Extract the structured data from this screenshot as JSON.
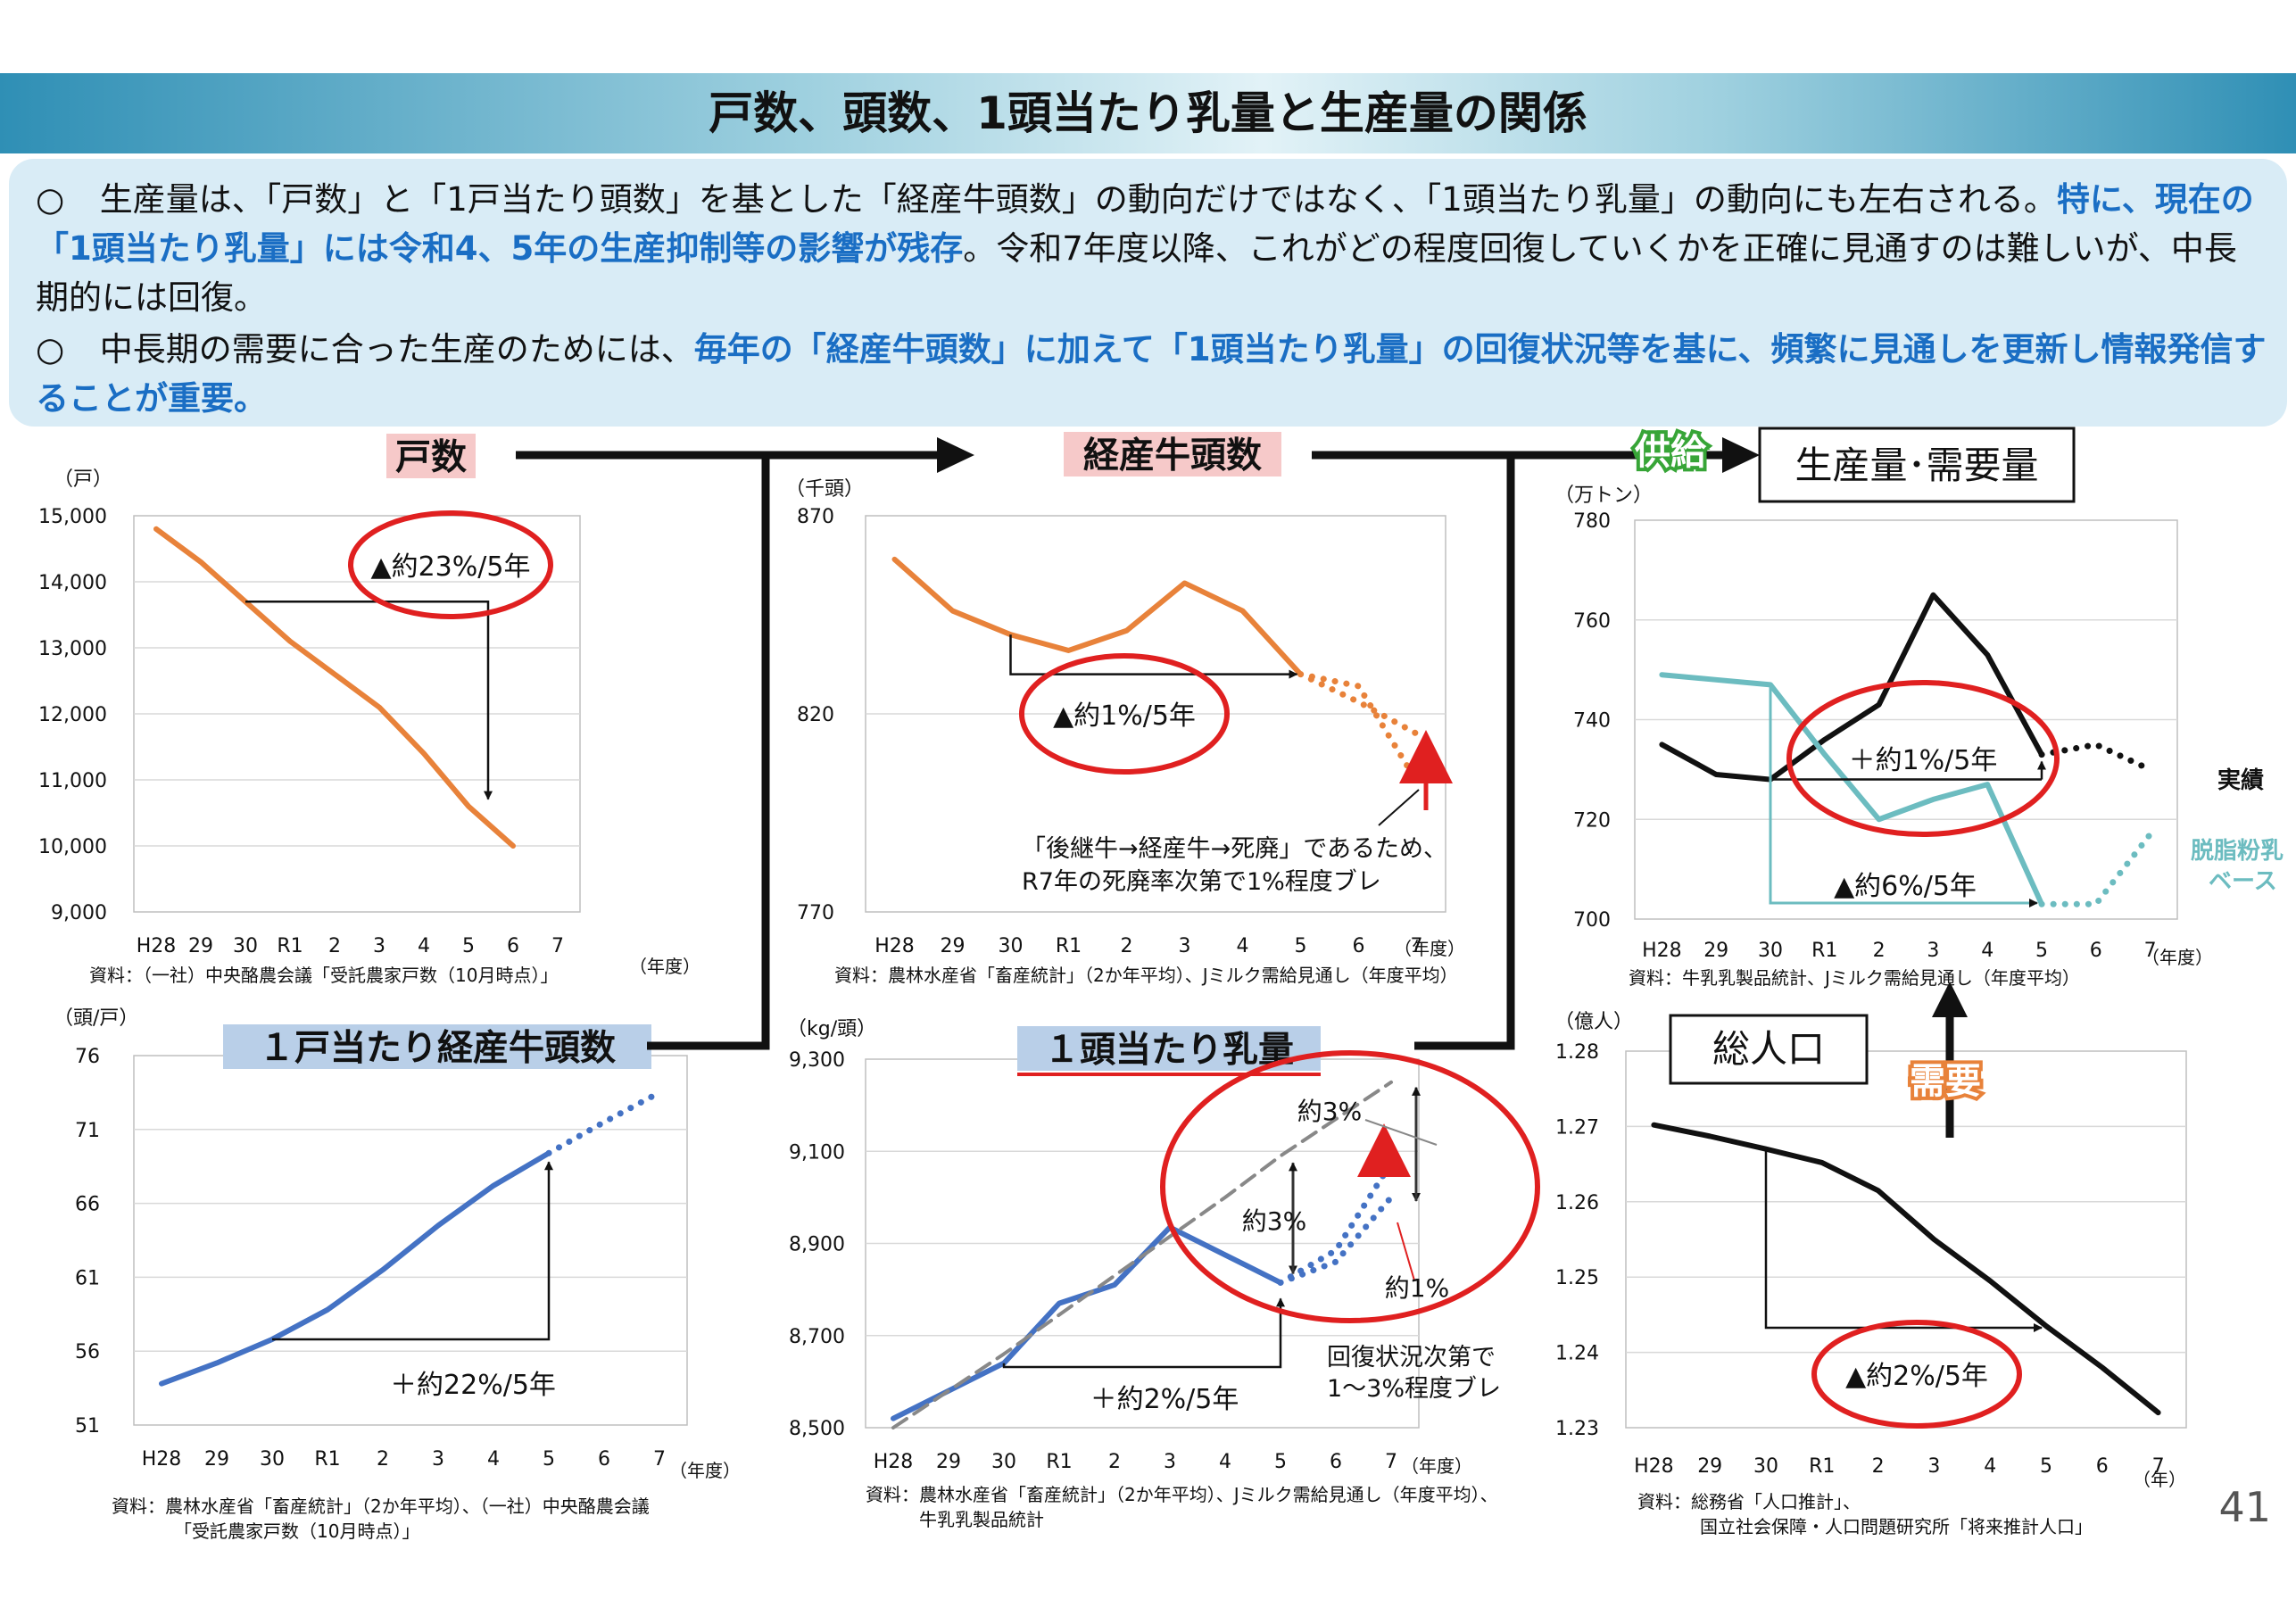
{
  "title": "戸数、頭数、1頭当たり乳量と生産量の関係",
  "summary": {
    "b1": {
      "mark": "○",
      "pre": " 生産量は、「戸数」と「1戸当たり頭数」を基とした「経産牛頭数」の動向だけではなく、「1頭当たり乳量」の動向にも左右される。",
      "hl": "特に、現在の「1頭当たり乳量」には令和4、5年の生産抑制等の影響が残存",
      "post": "。令和7年度以降、これがどの程度回復していくかを正確に見通すのは難しいが、中長期的には回復。"
    },
    "b2": {
      "mark": "○",
      "pre": " 中長期の需要に合った生産のためには、",
      "hl": "毎年の「経産牛頭数」に加えて「1頭当たり乳量」の回復状況等を基に、頻繁に見通しを更新し情報発信することが重要。"
    }
  },
  "flow": {
    "supply": "供給",
    "demand": "需要",
    "output_box": "生産量･需要量",
    "population_box": "総人口"
  },
  "page_number": "41",
  "colors": {
    "orange": "#e8823a",
    "blue": "#4472c4",
    "teal": "#6cbcc0",
    "black": "#111111",
    "red": "#e02020",
    "pink": "#f6c9c9",
    "lightblue": "#b9cfe8"
  },
  "chart_data": [
    {
      "id": "households",
      "type": "line",
      "title": "戸数",
      "unit": "（戸）",
      "categories": [
        "H28",
        "29",
        "30",
        "R1",
        "2",
        "3",
        "4",
        "5",
        "6",
        "7"
      ],
      "xaxis_suffix": "（年度）",
      "ylim": [
        9000,
        15000
      ],
      "yticks": [
        "9,000",
        "10,000",
        "11,000",
        "12,000",
        "13,000",
        "14,000",
        "15,000"
      ],
      "series": [
        {
          "values": [
            14800,
            14300,
            13700,
            13100,
            12600,
            12100,
            11400,
            10600,
            10000,
            null
          ],
          "color": "#e8823a"
        }
      ],
      "annotation": "▲約23%/5年",
      "source": "資料：（一社）中央酪農会議「受託農家戸数（10月時点）」"
    },
    {
      "id": "cows",
      "type": "line",
      "title": "経産牛頭数",
      "unit": "（千頭）",
      "categories": [
        "H28",
        "29",
        "30",
        "R1",
        "2",
        "3",
        "4",
        "5",
        "6",
        "7"
      ],
      "xaxis_suffix": "（年度）",
      "ylim": [
        770,
        870
      ],
      "yticks": [
        "770",
        "820",
        "870"
      ],
      "series": [
        {
          "values": [
            859,
            846,
            840,
            836,
            841,
            853,
            846,
            830,
            null,
            null
          ],
          "color": "#e8823a"
        },
        {
          "values": [
            null,
            null,
            null,
            null,
            null,
            null,
            null,
            830,
            827,
            803
          ],
          "color": "#e8823a",
          "dotted": true
        },
        {
          "values": [
            null,
            null,
            null,
            null,
            null,
            null,
            null,
            830,
            823,
            815
          ],
          "color": "#e8823a",
          "dotted": true
        }
      ],
      "annotation": "▲約1%/5年",
      "note1": "「後継牛→経産牛→死廃」であるため、",
      "note2": "R7年の死廃率次第で1%程度ブレ",
      "source": "資料：農林水産省「畜産統計」（2か年平均）、Jミルク需給見通し（年度平均）"
    },
    {
      "id": "production",
      "type": "line",
      "unit": "（万トン）",
      "categories": [
        "H28",
        "29",
        "30",
        "R1",
        "2",
        "3",
        "4",
        "5",
        "6",
        "7"
      ],
      "xaxis_suffix": "（年度）",
      "ylim": [
        700,
        780
      ],
      "yticks": [
        "700",
        "720",
        "740",
        "760",
        "780"
      ],
      "series": [
        {
          "name": "実績",
          "values": [
            735,
            729,
            728,
            736,
            743,
            765,
            753,
            733,
            null,
            null
          ],
          "color": "#111111"
        },
        {
          "values": [
            null,
            null,
            null,
            null,
            null,
            null,
            null,
            733,
            735,
            730
          ],
          "color": "#111111",
          "dotted": true
        },
        {
          "name": "脱脂粉乳ベース",
          "values": [
            749,
            748,
            747,
            733,
            720,
            724,
            727,
            703,
            null,
            null
          ],
          "color": "#6cbcc0"
        },
        {
          "values": [
            null,
            null,
            null,
            null,
            null,
            null,
            null,
            703,
            703,
            717
          ],
          "color": "#6cbcc0",
          "dotted": true
        }
      ],
      "legend_actual": "実績",
      "legend_skim1": "脱脂粉乳",
      "legend_skim2": "ベース",
      "annotation1": "＋約1%/5年",
      "annotation2": "▲約6%/5年",
      "source": "資料：牛乳乳製品統計、Jミルク需給見通し（年度平均）"
    },
    {
      "id": "per_household",
      "type": "line",
      "title": "１戸当たり経産牛頭数",
      "unit": "（頭/戸）",
      "categories": [
        "H28",
        "29",
        "30",
        "R1",
        "2",
        "3",
        "4",
        "5",
        "6",
        "7"
      ],
      "xaxis_suffix": "（年度）",
      "ylim": [
        51,
        76
      ],
      "yticks": [
        "51",
        "56",
        "61",
        "66",
        "71",
        "76"
      ],
      "series": [
        {
          "values": [
            53.8,
            55.2,
            56.8,
            58.8,
            61.5,
            64.5,
            67.2,
            69.4,
            null,
            null
          ],
          "color": "#4472c4"
        },
        {
          "values": [
            null,
            null,
            null,
            null,
            null,
            null,
            null,
            69.4,
            71.5,
            73.5
          ],
          "color": "#4472c4",
          "dotted": true
        }
      ],
      "annotation": "＋約22%/5年",
      "source1": "資料：農林水産省「畜産統計」（2か年平均）、（一社）中央酪農会議",
      "source2": "「受託農家戸数（10月時点）」"
    },
    {
      "id": "yield",
      "type": "line",
      "title": "１頭当たり乳量",
      "unit": "（kg/頭）",
      "categories": [
        "H28",
        "29",
        "30",
        "R1",
        "2",
        "3",
        "4",
        "5",
        "6",
        "7"
      ],
      "xaxis_suffix": "（年度）",
      "ylim": [
        8500,
        9300
      ],
      "yticks": [
        "8,500",
        "8,700",
        "8,900",
        "9,100",
        "9,300"
      ],
      "series": [
        {
          "values": [
            8520,
            8580,
            8640,
            8770,
            8810,
            8935,
            8875,
            8815,
            null,
            null
          ],
          "color": "#4472c4"
        },
        {
          "values": [
            null,
            null,
            null,
            null,
            null,
            null,
            null,
            8815,
            8885,
            9075
          ],
          "color": "#4472c4",
          "dotted": true
        },
        {
          "values": [
            null,
            null,
            null,
            null,
            null,
            null,
            null,
            8815,
            8860,
            9000
          ],
          "color": "#4472c4",
          "dotted": true
        },
        {
          "values": [
            8500,
            8580,
            8660,
            8745,
            8830,
            8915,
            9000,
            9090,
            9170,
            9250
          ],
          "color": "#888888",
          "dashed": true
        }
      ],
      "annotation_main": "＋約2%/5年",
      "label_3a": "約3%",
      "label_3b": "約3%",
      "label_1": "約1%",
      "note1": "回復状況次第で",
      "note2": "1～3%程度ブレ",
      "source1": "資料：農林水産省「畜産統計」（2か年平均）、Jミルク需給見通し（年度平均）、",
      "source2": "牛乳乳製品統計"
    },
    {
      "id": "population",
      "type": "line",
      "unit": "（億人）",
      "categories": [
        "H28",
        "29",
        "30",
        "R1",
        "2",
        "3",
        "4",
        "5",
        "6",
        "7"
      ],
      "xaxis_suffix": "（年）",
      "ylim": [
        1.23,
        1.28
      ],
      "yticks": [
        "1.23",
        "1.24",
        "1.25",
        "1.26",
        "1.27",
        "1.28"
      ],
      "series": [
        {
          "values": [
            1.2702,
            1.2687,
            1.267,
            1.2652,
            1.2615,
            1.255,
            1.2495,
            1.2435,
            1.238,
            1.232
          ],
          "color": "#111111"
        }
      ],
      "annotation": "▲約2%/5年",
      "source1": "資料：総務省「人口推計」、",
      "source2": "国立社会保障・人口問題研究所「将来推計人口」"
    }
  ]
}
